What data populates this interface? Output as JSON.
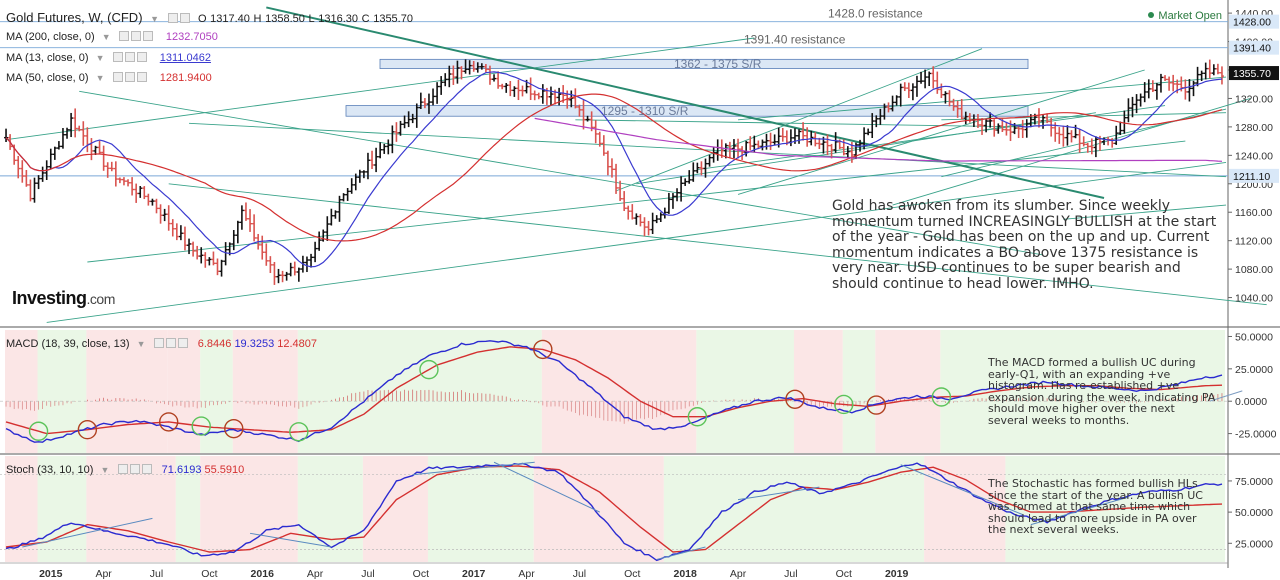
{
  "header": {
    "title": "Gold Futures, W, (CFD)",
    "ohlc": {
      "o_label": "O",
      "o": "1317.40",
      "h_label": "H",
      "h": "1358.50",
      "l_label": "L",
      "l": "1316.30",
      "c_label": "C",
      "c": "1355.70"
    },
    "ma200_label": "MA (200, close, 0)",
    "ma200_value": "1232.7050",
    "ma13_label": "MA (13, close, 0)",
    "ma13_value": "1311.0462",
    "ma50_label": "MA (50, close, 0)",
    "ma50_value": "1281.9400",
    "market_status": "Market Open",
    "logo": "Investing",
    "logo_domain": ".com"
  },
  "annotations": {
    "main": "Gold has awoken from its slumber. Since weekly momentum turned INCREASINGLY BULLISH at the start of the year - Gold has been on the up and up. Current momentum indicates a BO above 1375 resistance is very near. USD continues to be super bearish and should continue to head lower. IMHO.",
    "macd": "The MACD formed a bullish UC during early-Q1, with an expanding +ve histogram. Has re-established +ve expansion during the week, indicating PA should move higher over the next several weeks to months.",
    "stoch": "The Stochastic has formed bullish HLs since the start of the year. A bullish UC was formed at that same time which should lead to more upside in PA over the next several weeks."
  },
  "colors": {
    "up": "#111111",
    "down": "#d9534f",
    "ma200": "#b040c0",
    "ma13": "#3a3ad0",
    "ma50": "#d43030",
    "trend": "#3aa38a",
    "zone_fill": "#dbe7f5",
    "zone_line": "#5a7fb8",
    "bull_bg": "#eaf7e6",
    "bear_bg": "#fbe6e6",
    "macd_line": "#2a2ad0",
    "signal": "#d43030",
    "price_tag": "#111111",
    "level_tag": "#d9e8f8"
  },
  "chart_data": [
    {
      "type": "candlestick",
      "name": "price",
      "ylim": [
        1000,
        1450
      ],
      "y_ticks": [
        1040,
        1080,
        1120,
        1160,
        1200,
        1240,
        1280,
        1320,
        1360,
        1400,
        1440
      ],
      "y_tick_labels": [
        "1040.00",
        "1080.00",
        "1120.00",
        "1160.00",
        "1200.00",
        "1240.00",
        "1280.00",
        "1320.00",
        "1360.00",
        "1400.00",
        "1440.00"
      ],
      "x_ticks": [
        "2015",
        "Apr",
        "Jul",
        "Oct",
        "2016",
        "Apr",
        "Jul",
        "Oct",
        "2017",
        "Apr",
        "Jul",
        "Oct",
        "2018",
        "Apr",
        "Jul",
        "Oct",
        "2019"
      ],
      "anchors": [
        [
          0,
          1265
        ],
        [
          6,
          1185
        ],
        [
          16,
          1290
        ],
        [
          26,
          1215
        ],
        [
          36,
          1175
        ],
        [
          45,
          1110
        ],
        [
          52,
          1082
        ],
        [
          58,
          1160
        ],
        [
          66,
          1070
        ],
        [
          75,
          1090
        ],
        [
          82,
          1180
        ],
        [
          94,
          1260
        ],
        [
          107,
          1340
        ],
        [
          114,
          1372
        ],
        [
          122,
          1340
        ],
        [
          130,
          1330
        ],
        [
          138,
          1325
        ],
        [
          146,
          1260
        ],
        [
          152,
          1170
        ],
        [
          158,
          1135
        ],
        [
          166,
          1195
        ],
        [
          175,
          1245
        ],
        [
          186,
          1255
        ],
        [
          194,
          1268
        ],
        [
          200,
          1260
        ],
        [
          208,
          1245
        ],
        [
          214,
          1290
        ],
        [
          220,
          1330
        ],
        [
          227,
          1355
        ],
        [
          234,
          1300
        ],
        [
          241,
          1285
        ],
        [
          248,
          1275
        ],
        [
          254,
          1290
        ],
        [
          260,
          1270
        ],
        [
          266,
          1255
        ],
        [
          272,
          1260
        ],
        [
          278,
          1320
        ],
        [
          284,
          1345
        ],
        [
          290,
          1335
        ],
        [
          295,
          1356
        ]
      ],
      "levels": [
        {
          "value": 1428.0,
          "label": "1428.0 resistance",
          "tag": "1428.00"
        },
        {
          "value": 1391.4,
          "label": "1391.40 resistance",
          "tag": "1391.40"
        },
        {
          "value": 1211.1,
          "label": "",
          "tag": "1211.10"
        }
      ],
      "zones": [
        {
          "low": 1362,
          "high": 1375,
          "label": "1362 - 1375 S/R"
        },
        {
          "low": 1295,
          "high": 1310,
          "label": "1295 - 1310 S/R"
        }
      ],
      "last_price": "1355.70"
    },
    {
      "type": "line",
      "name": "MACD (18, 39, close, 13)",
      "values_shown": [
        "6.8446",
        "19.3253",
        "12.4807"
      ],
      "ylim": [
        -40,
        55
      ],
      "y_ticks": [
        -25,
        0,
        25,
        50
      ],
      "y_tick_labels": [
        "-25.0000",
        "0.0000",
        "25.0000",
        "50.0000"
      ],
      "macd_anchors": [
        [
          0,
          -22
        ],
        [
          8,
          -32
        ],
        [
          16,
          -25
        ],
        [
          24,
          -18
        ],
        [
          32,
          -15
        ],
        [
          40,
          -20
        ],
        [
          48,
          -26
        ],
        [
          56,
          -22
        ],
        [
          64,
          -26
        ],
        [
          72,
          -30
        ],
        [
          80,
          -20
        ],
        [
          88,
          0
        ],
        [
          96,
          20
        ],
        [
          104,
          35
        ],
        [
          112,
          44
        ],
        [
          120,
          47
        ],
        [
          128,
          42
        ],
        [
          136,
          30
        ],
        [
          144,
          10
        ],
        [
          152,
          -12
        ],
        [
          160,
          -22
        ],
        [
          168,
          -18
        ],
        [
          176,
          -8
        ],
        [
          184,
          0
        ],
        [
          192,
          3
        ],
        [
          200,
          -5
        ],
        [
          208,
          -8
        ],
        [
          216,
          0
        ],
        [
          224,
          4
        ],
        [
          232,
          2
        ],
        [
          240,
          8
        ],
        [
          248,
          12
        ],
        [
          256,
          15
        ],
        [
          264,
          12
        ],
        [
          272,
          10
        ],
        [
          280,
          8
        ],
        [
          288,
          13
        ],
        [
          295,
          19
        ]
      ],
      "signal_anchors": [
        [
          0,
          -16
        ],
        [
          10,
          -25
        ],
        [
          20,
          -22
        ],
        [
          30,
          -18
        ],
        [
          40,
          -16
        ],
        [
          50,
          -20
        ],
        [
          60,
          -22
        ],
        [
          70,
          -24
        ],
        [
          80,
          -22
        ],
        [
          88,
          -10
        ],
        [
          96,
          10
        ],
        [
          106,
          28
        ],
        [
          116,
          38
        ],
        [
          124,
          42
        ],
        [
          132,
          40
        ],
        [
          140,
          32
        ],
        [
          148,
          18
        ],
        [
          156,
          0
        ],
        [
          164,
          -12
        ],
        [
          172,
          -12
        ],
        [
          180,
          -5
        ],
        [
          188,
          0
        ],
        [
          196,
          2
        ],
        [
          204,
          -2
        ],
        [
          212,
          -4
        ],
        [
          220,
          0
        ],
        [
          228,
          3
        ],
        [
          236,
          4
        ],
        [
          244,
          8
        ],
        [
          252,
          11
        ],
        [
          260,
          12
        ],
        [
          268,
          12
        ],
        [
          276,
          10
        ],
        [
          284,
          9
        ],
        [
          295,
          12
        ]
      ],
      "crossovers_up": [
        8,
        48,
        72,
        104,
        170,
        206,
        230
      ],
      "crossovers_down": [
        20,
        40,
        56,
        132,
        194,
        214
      ]
    },
    {
      "type": "line",
      "name": "Stoch (33, 10, 10)",
      "values_shown": [
        "71.6193",
        "55.5910"
      ],
      "ylim": [
        10,
        95
      ],
      "y_ticks": [
        25,
        50,
        75
      ],
      "y_tick_labels": [
        "25.0000",
        "50.0000",
        "75.0000"
      ],
      "k_anchors": [
        [
          0,
          20
        ],
        [
          8,
          28
        ],
        [
          16,
          42
        ],
        [
          24,
          35
        ],
        [
          32,
          30
        ],
        [
          40,
          24
        ],
        [
          48,
          15
        ],
        [
          56,
          18
        ],
        [
          64,
          35
        ],
        [
          72,
          40
        ],
        [
          80,
          22
        ],
        [
          88,
          35
        ],
        [
          96,
          75
        ],
        [
          104,
          85
        ],
        [
          112,
          86
        ],
        [
          120,
          88
        ],
        [
          128,
          88
        ],
        [
          136,
          82
        ],
        [
          144,
          55
        ],
        [
          152,
          25
        ],
        [
          160,
          12
        ],
        [
          168,
          20
        ],
        [
          176,
          50
        ],
        [
          184,
          66
        ],
        [
          192,
          74
        ],
        [
          200,
          65
        ],
        [
          208,
          72
        ],
        [
          216,
          82
        ],
        [
          224,
          90
        ],
        [
          232,
          75
        ],
        [
          240,
          60
        ],
        [
          248,
          48
        ],
        [
          256,
          42
        ],
        [
          264,
          52
        ],
        [
          272,
          60
        ],
        [
          280,
          66
        ],
        [
          288,
          68
        ],
        [
          295,
          72
        ]
      ],
      "d_anchors": [
        [
          0,
          22
        ],
        [
          10,
          26
        ],
        [
          20,
          40
        ],
        [
          30,
          35
        ],
        [
          40,
          26
        ],
        [
          50,
          18
        ],
        [
          60,
          20
        ],
        [
          70,
          33
        ],
        [
          80,
          28
        ],
        [
          88,
          30
        ],
        [
          96,
          60
        ],
        [
          106,
          80
        ],
        [
          116,
          86
        ],
        [
          126,
          87
        ],
        [
          136,
          84
        ],
        [
          146,
          66
        ],
        [
          156,
          38
        ],
        [
          164,
          18
        ],
        [
          172,
          20
        ],
        [
          180,
          40
        ],
        [
          188,
          60
        ],
        [
          196,
          70
        ],
        [
          204,
          68
        ],
        [
          212,
          74
        ],
        [
          220,
          82
        ],
        [
          228,
          86
        ],
        [
          236,
          76
        ],
        [
          244,
          60
        ],
        [
          252,
          50
        ],
        [
          260,
          50
        ],
        [
          270,
          52
        ],
        [
          280,
          54
        ],
        [
          288,
          55
        ],
        [
          295,
          56
        ]
      ],
      "overbought": 80,
      "oversold": 20,
      "crossovers_up": [
        8,
        42,
        72,
        104,
        162,
        246
      ],
      "crossovers_down": [
        20,
        30,
        48,
        88,
        130,
        226
      ]
    }
  ]
}
